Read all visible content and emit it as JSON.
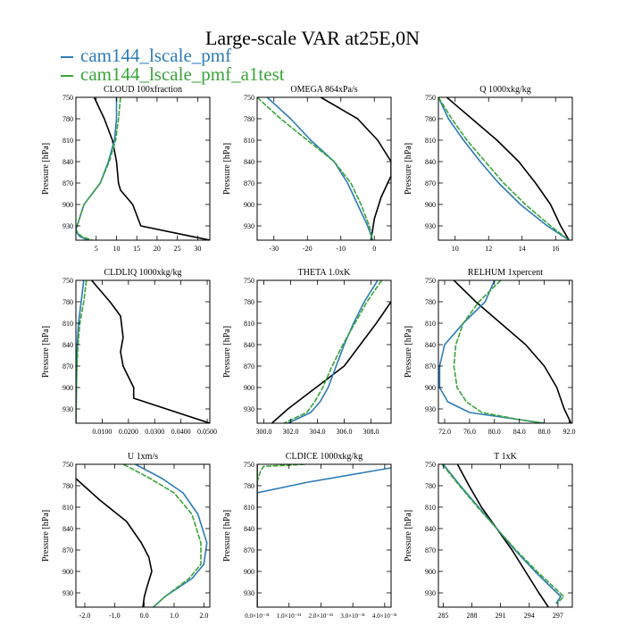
{
  "figure": {
    "title": "Large-scale VAR at25E,0N",
    "legend": [
      {
        "label": "cam144_lscale_pmf",
        "color": "#2d7bb6"
      },
      {
        "label": "cam144_lscale_pmf_a1test",
        "color": "#3aa43a"
      }
    ],
    "ref_color": "#000000"
  },
  "chart_data": [
    {
      "type": "line",
      "title": "CLOUD  100xfraction",
      "ylabel": "Pressure [hPa]",
      "xlim": [
        0,
        33
      ],
      "ylim": [
        750,
        950
      ],
      "xticks": [
        5,
        10,
        15,
        20,
        25,
        30
      ],
      "xticklabels": [
        "5",
        "10",
        "15",
        "20",
        "25",
        "30"
      ],
      "yticks": [
        750,
        780,
        810,
        840,
        870,
        900,
        930
      ],
      "yticklabels": [
        "750",
        "780",
        "810",
        "840",
        "870",
        "900",
        "930"
      ],
      "series": [
        {
          "role": "ref",
          "x": [
            4.5,
            7,
            9,
            10,
            10.5,
            11,
            14,
            16,
            33
          ],
          "y": [
            750,
            780,
            810,
            840,
            870,
            880,
            900,
            930,
            950
          ]
        },
        {
          "role": "cam144_lscale_pmf",
          "x": [
            10,
            10,
            9.5,
            8,
            6,
            2,
            0,
            0.3,
            1,
            3
          ],
          "y": [
            750,
            780,
            810,
            840,
            870,
            900,
            935,
            940,
            945,
            950
          ]
        },
        {
          "role": "cam144_lscale_pmf_a1test",
          "x": [
            11,
            10.5,
            9.8,
            8.2,
            6,
            2,
            0,
            0.5,
            1.5,
            4
          ],
          "y": [
            750,
            780,
            810,
            840,
            870,
            900,
            935,
            940,
            945,
            950
          ]
        }
      ]
    },
    {
      "type": "line",
      "title": "OMEGA  864xPa/s",
      "ylabel": "Pressure [hPa]",
      "xlim": [
        -35,
        5
      ],
      "ylim": [
        750,
        950
      ],
      "xticks": [
        -30,
        -20,
        -10,
        0
      ],
      "xticklabels": [
        "-30",
        "-20",
        "-10",
        "0"
      ],
      "yticks": [
        750,
        780,
        810,
        840,
        870,
        900,
        930
      ],
      "yticklabels": [
        "750",
        "780",
        "810",
        "840",
        "870",
        "900",
        "930"
      ],
      "series": [
        {
          "role": "ref",
          "x": [
            -16,
            -5,
            1,
            5,
            5,
            2,
            0,
            -1
          ],
          "y": [
            750,
            780,
            810,
            840,
            860,
            890,
            920,
            950
          ]
        },
        {
          "role": "cam144_lscale_pmf",
          "x": [
            -32,
            -25,
            -19,
            -12,
            -8,
            -5,
            -2,
            -0.5
          ],
          "y": [
            750,
            780,
            810,
            840,
            870,
            900,
            930,
            950
          ]
        },
        {
          "role": "cam144_lscale_pmf_a1test",
          "x": [
            -35,
            -28,
            -20,
            -12,
            -7,
            -4,
            -1.5,
            -0.5
          ],
          "y": [
            750,
            780,
            810,
            840,
            870,
            900,
            930,
            950
          ]
        }
      ]
    },
    {
      "type": "line",
      "title": "Q  1000xkg/kg",
      "ylabel": "Pressure [hPa]",
      "xlim": [
        9,
        17
      ],
      "ylim": [
        750,
        950
      ],
      "xticks": [
        10,
        12,
        14,
        16
      ],
      "xticklabels": [
        "10",
        "12",
        "14",
        "16"
      ],
      "yticks": [
        750,
        780,
        810,
        840,
        870,
        900,
        930
      ],
      "yticklabels": [
        "750",
        "780",
        "810",
        "840",
        "870",
        "900",
        "930"
      ],
      "series": [
        {
          "role": "ref",
          "x": [
            9.5,
            11,
            12.5,
            13.8,
            14.8,
            15.7,
            16.3,
            16.8
          ],
          "y": [
            750,
            780,
            810,
            840,
            870,
            900,
            930,
            950
          ]
        },
        {
          "role": "cam144_lscale_pmf",
          "x": [
            9,
            9.6,
            10.5,
            11.5,
            12.6,
            13.9,
            15.5,
            16.8
          ],
          "y": [
            750,
            780,
            810,
            840,
            870,
            900,
            930,
            950
          ]
        },
        {
          "role": "cam144_lscale_pmf_a1test",
          "x": [
            9,
            9.8,
            10.7,
            11.8,
            12.9,
            14.2,
            15.7,
            16.8
          ],
          "y": [
            750,
            780,
            810,
            840,
            870,
            900,
            930,
            950
          ]
        }
      ]
    },
    {
      "type": "line",
      "title": "CLDLIQ  1000xkg/kg",
      "ylabel": "Pressure [hPa]",
      "xlim": [
        0,
        0.051
      ],
      "ylim": [
        750,
        950
      ],
      "xticks": [
        0.01,
        0.02,
        0.03,
        0.04,
        0.05
      ],
      "xticklabels": [
        "0.0100",
        "0.0200",
        "0.0300",
        "0.0400",
        "0.0500"
      ],
      "yticks": [
        750,
        780,
        810,
        840,
        870,
        900,
        930
      ],
      "yticklabels": [
        "750",
        "780",
        "810",
        "840",
        "870",
        "900",
        "930"
      ],
      "series": [
        {
          "role": "ref",
          "x": [
            0.006,
            0.013,
            0.017,
            0.018,
            0.017,
            0.018,
            0.022,
            0.022,
            0.051
          ],
          "y": [
            750,
            780,
            800,
            830,
            850,
            870,
            900,
            915,
            950
          ]
        },
        {
          "role": "cam144_lscale_pmf",
          "x": [
            0.003,
            0.002,
            0.001,
            0.0005,
            0.0003,
            0.0002,
            0.0001,
            0
          ],
          "y": [
            750,
            780,
            810,
            840,
            870,
            900,
            930,
            950
          ]
        },
        {
          "role": "cam144_lscale_pmf_a1test",
          "x": [
            0.004,
            0.003,
            0.0015,
            0.0008,
            0.0004,
            0.0002,
            0.0001,
            0
          ],
          "y": [
            750,
            780,
            810,
            840,
            870,
            900,
            930,
            950
          ]
        }
      ]
    },
    {
      "type": "line",
      "title": "THETA  1.0xK",
      "ylabel": "Pressure [hPa]",
      "xlim": [
        299.5,
        309.5
      ],
      "ylim": [
        750,
        950
      ],
      "xticks": [
        300,
        302,
        304,
        306,
        308
      ],
      "xticklabels": [
        "300.0",
        "302.0",
        "304.0",
        "306.0",
        "308.0"
      ],
      "yticks": [
        750,
        780,
        810,
        840,
        870,
        900,
        930
      ],
      "yticklabels": [
        "750",
        "780",
        "810",
        "840",
        "870",
        "900",
        "930"
      ],
      "series": [
        {
          "role": "ref",
          "x": [
            309.5,
            308.4,
            307.2,
            306,
            304.6,
            303.2,
            301.8,
            300.6
          ],
          "y": [
            780,
            810,
            840,
            870,
            890,
            910,
            930,
            950
          ]
        },
        {
          "role": "cam144_lscale_pmf",
          "x": [
            308.5,
            307.5,
            306.7,
            306,
            305.4,
            304.8,
            304.2,
            303.5,
            301.8
          ],
          "y": [
            750,
            780,
            810,
            840,
            870,
            900,
            920,
            935,
            950
          ]
        },
        {
          "role": "cam144_lscale_pmf_a1test",
          "x": [
            308.8,
            307.7,
            306.8,
            305.9,
            305.1,
            304.4,
            303.8,
            303.2,
            301.5
          ],
          "y": [
            750,
            780,
            810,
            840,
            870,
            900,
            920,
            935,
            950
          ]
        }
      ]
    },
    {
      "type": "line",
      "title": "RELHUM  1xpercent",
      "ylabel": "Pressure [hPa]",
      "xlim": [
        71,
        92.5
      ],
      "ylim": [
        750,
        950
      ],
      "xticks": [
        72,
        76,
        80,
        84,
        88,
        92
      ],
      "xticklabels": [
        "72.0",
        "76.0",
        "80.0",
        "84.0",
        "88.0",
        "92.0"
      ],
      "yticks": [
        750,
        780,
        810,
        840,
        870,
        900,
        930
      ],
      "yticklabels": [
        "750",
        "780",
        "810",
        "840",
        "870",
        "900",
        "930"
      ],
      "series": [
        {
          "role": "ref",
          "x": [
            73.5,
            77,
            81,
            85,
            88,
            90,
            91.2,
            92.3
          ],
          "y": [
            750,
            780,
            810,
            840,
            870,
            900,
            930,
            950
          ]
        },
        {
          "role": "cam144_lscale_pmf",
          "x": [
            80,
            78.5,
            75,
            72,
            71.2,
            71.2,
            72.5,
            76,
            84,
            88
          ],
          "y": [
            750,
            780,
            810,
            840,
            870,
            900,
            920,
            935,
            945,
            950
          ]
        },
        {
          "role": "cam144_lscale_pmf_a1test",
          "x": [
            81,
            77.5,
            75,
            73.8,
            73.5,
            74,
            75.5,
            78,
            84,
            88
          ],
          "y": [
            750,
            780,
            810,
            840,
            870,
            900,
            920,
            935,
            945,
            950
          ]
        }
      ]
    },
    {
      "type": "line",
      "title": "U  1xm/s",
      "ylabel": "Pressure [hPa]",
      "xlim": [
        -2.3,
        2.2
      ],
      "ylim": [
        750,
        950
      ],
      "xticks": [
        -2,
        -1,
        0,
        1,
        2
      ],
      "xticklabels": [
        "-2.0",
        "-1.0",
        "0.0",
        "1.0",
        "2.0"
      ],
      "yticks": [
        750,
        780,
        810,
        840,
        870,
        900,
        930
      ],
      "yticklabels": [
        "750",
        "780",
        "810",
        "840",
        "870",
        "900",
        "930"
      ],
      "series": [
        {
          "role": "ref",
          "x": [
            -2.3,
            -1.5,
            -0.6,
            -0.1,
            0.15,
            0.25,
            0.1,
            0,
            -0.05
          ],
          "y": [
            770,
            800,
            830,
            860,
            880,
            900,
            920,
            935,
            950
          ]
        },
        {
          "role": "cam144_lscale_pmf",
          "x": [
            -0.3,
            0.6,
            1.3,
            1.8,
            2.1,
            2.0,
            1.6,
            0.7,
            0.3
          ],
          "y": [
            750,
            770,
            790,
            820,
            860,
            890,
            910,
            935,
            950
          ]
        },
        {
          "role": "cam144_lscale_pmf_a1test",
          "x": [
            -0.7,
            0.2,
            1.0,
            1.6,
            1.9,
            1.9,
            1.5,
            0.7,
            0.3
          ],
          "y": [
            750,
            770,
            790,
            820,
            860,
            890,
            910,
            935,
            950
          ]
        }
      ]
    },
    {
      "type": "line",
      "title": "CLDICE  1000xkg/kg",
      "ylabel": "Pressure [hPa]",
      "xlim": [
        0,
        4.2e-31
      ],
      "ylim": [
        750,
        950
      ],
      "xticks": [
        0,
        1e-31,
        2e-31,
        3e-31,
        4e-31
      ],
      "xticklabels": [
        "0.0×10⁻³¹",
        "1.0×10⁻³¹",
        "2.0×10⁻³¹",
        "3.0×10⁻³¹",
        "4.0×10⁻³¹"
      ],
      "yticks": [
        750,
        780,
        810,
        840,
        870,
        900,
        930
      ],
      "yticklabels": [
        "750",
        "780",
        "810",
        "840",
        "870",
        "900",
        "930"
      ],
      "series": [
        {
          "role": "ref",
          "x": [
            0,
            0
          ],
          "y": [
            750,
            950
          ]
        },
        {
          "role": "cam144_lscale_pmf",
          "x": [
            4.2e-31,
            1.6e-31,
            0
          ],
          "y": [
            755,
            775,
            790
          ]
        },
        {
          "role": "cam144_lscale_pmf_a1test",
          "x": [
            1.5e-31,
            2e-32,
            1e-32,
            0
          ],
          "y": [
            750,
            753,
            760,
            775
          ]
        }
      ]
    },
    {
      "type": "line",
      "title": "T  1xK",
      "ylabel": "Pressure [hPa]",
      "xlim": [
        284.5,
        298.5
      ],
      "ylim": [
        750,
        950
      ],
      "xticks": [
        285,
        288,
        291,
        294,
        297
      ],
      "xticklabels": [
        "285",
        "288",
        "291",
        "294",
        "297"
      ],
      "yticks": [
        750,
        780,
        810,
        840,
        870,
        900,
        930
      ],
      "yticklabels": [
        "750",
        "780",
        "810",
        "840",
        "870",
        "900",
        "930"
      ],
      "series": [
        {
          "role": "ref",
          "x": [
            286.5,
            287.7,
            289,
            290.6,
            292.2,
            293.6,
            295,
            296
          ],
          "y": [
            750,
            780,
            810,
            840,
            870,
            900,
            930,
            950
          ]
        },
        {
          "role": "cam144_lscale_pmf",
          "x": [
            285,
            286.8,
            288.7,
            290.6,
            292.5,
            294.6,
            296.5,
            297.3,
            296.8
          ],
          "y": [
            750,
            780,
            810,
            840,
            870,
            900,
            925,
            935,
            945
          ]
        },
        {
          "role": "cam144_lscale_pmf_a1test",
          "x": [
            284.9,
            286.7,
            288.6,
            290.6,
            292.6,
            294.8,
            296.8,
            297.6,
            296.9
          ],
          "y": [
            750,
            780,
            810,
            840,
            870,
            900,
            925,
            935,
            945
          ]
        }
      ]
    }
  ]
}
